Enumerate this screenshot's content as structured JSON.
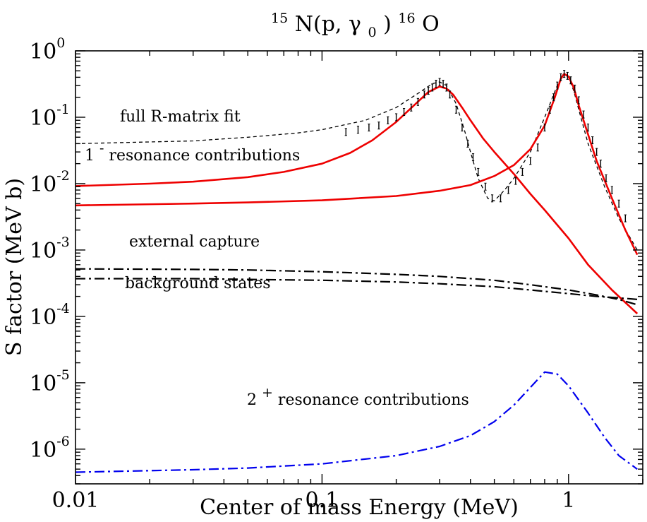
{
  "chart_data": {
    "type": "line",
    "title": {
      "mass_left": "15",
      "nucleus_left": "N(p,",
      "gamma": "γ",
      "gamma_sub": "0",
      "close": ")",
      "mass_right": "16",
      "nucleus_right": "O"
    },
    "xlabel": "Center of mass Energy (MeV)",
    "ylabel": "S factor (MeV b)",
    "x_scale": "log",
    "y_scale": "log",
    "xlim": [
      0.01,
      2.0
    ],
    "ylim": [
      3e-07,
      1.0
    ],
    "grid": false,
    "x_ticks": [
      {
        "value": 0.01,
        "label": "0.01"
      },
      {
        "value": 0.1,
        "label": "0.1"
      },
      {
        "value": 1,
        "label": "1"
      }
    ],
    "y_ticks": [
      {
        "value": 1,
        "base": "10",
        "exp": "0"
      },
      {
        "value": 0.1,
        "base": "10",
        "exp": "-1"
      },
      {
        "value": 0.01,
        "base": "10",
        "exp": "-2"
      },
      {
        "value": 0.001,
        "base": "10",
        "exp": "-3"
      },
      {
        "value": 0.0001,
        "base": "10",
        "exp": "-4"
      },
      {
        "value": 1e-05,
        "base": "10",
        "exp": "-5"
      },
      {
        "value": 1e-06,
        "base": "10",
        "exp": "-6"
      }
    ],
    "annotations": {
      "full_fit": "full R-matrix fit",
      "res1_base": "1",
      "res1_sup": "-",
      "res1_rest": " resonance contributions",
      "ext_capture": "external capture",
      "background": "background states",
      "res2_base": "2",
      "res2_sup": "+",
      "res2_rest": " resonance contributions"
    },
    "series": [
      {
        "id": "full-fit",
        "color": "#000000",
        "style": "dashed",
        "x": [
          0.01,
          0.03,
          0.05,
          0.08,
          0.1,
          0.15,
          0.2,
          0.25,
          0.28,
          0.3,
          0.32,
          0.35,
          0.38,
          0.4,
          0.43,
          0.47,
          0.5,
          0.55,
          0.6,
          0.7,
          0.8,
          0.9,
          0.95,
          1.0,
          1.05,
          1.1,
          1.2,
          1.4,
          1.6,
          1.9
        ],
        "y": [
          0.04,
          0.044,
          0.05,
          0.058,
          0.065,
          0.09,
          0.14,
          0.24,
          0.32,
          0.34,
          0.3,
          0.16,
          0.06,
          0.03,
          0.012,
          0.006,
          0.0055,
          0.008,
          0.012,
          0.03,
          0.1,
          0.3,
          0.44,
          0.4,
          0.25,
          0.13,
          0.04,
          0.009,
          0.003,
          0.001
        ]
      },
      {
        "id": "res1-a",
        "color": "#ee0000",
        "style": "solid",
        "x": [
          0.01,
          0.02,
          0.03,
          0.05,
          0.07,
          0.1,
          0.13,
          0.16,
          0.2,
          0.24,
          0.27,
          0.3,
          0.32,
          0.34,
          0.37,
          0.4,
          0.45,
          0.5,
          0.6,
          0.7,
          0.8,
          1.0,
          1.2,
          1.5,
          1.9
        ],
        "y": [
          0.0092,
          0.01,
          0.0107,
          0.0125,
          0.015,
          0.02,
          0.029,
          0.045,
          0.085,
          0.16,
          0.24,
          0.29,
          0.27,
          0.22,
          0.14,
          0.09,
          0.048,
          0.03,
          0.014,
          0.007,
          0.004,
          0.0015,
          0.0006,
          0.00025,
          0.00011
        ]
      },
      {
        "id": "res1-b",
        "color": "#ee0000",
        "style": "solid",
        "x": [
          0.01,
          0.03,
          0.05,
          0.1,
          0.2,
          0.3,
          0.4,
          0.5,
          0.6,
          0.7,
          0.8,
          0.88,
          0.93,
          0.96,
          1.0,
          1.05,
          1.1,
          1.2,
          1.3,
          1.5,
          1.7,
          1.9
        ],
        "y": [
          0.0047,
          0.005,
          0.0052,
          0.0056,
          0.0065,
          0.0078,
          0.0095,
          0.013,
          0.019,
          0.033,
          0.075,
          0.2,
          0.38,
          0.45,
          0.41,
          0.28,
          0.15,
          0.055,
          0.022,
          0.006,
          0.002,
          0.00085
        ]
      },
      {
        "id": "ext-capture",
        "color": "#000000",
        "style": "dashdot",
        "x": [
          0.01,
          0.03,
          0.05,
          0.1,
          0.2,
          0.3,
          0.5,
          0.7,
          1.0,
          1.3,
          1.6,
          1.9
        ],
        "y": [
          0.00052,
          0.00051,
          0.0005,
          0.00047,
          0.00043,
          0.0004,
          0.00035,
          0.0003,
          0.00025,
          0.00021,
          0.00018,
          0.00015
        ]
      },
      {
        "id": "background",
        "color": "#000000",
        "style": "dashdot",
        "x": [
          0.01,
          0.03,
          0.05,
          0.1,
          0.2,
          0.3,
          0.5,
          0.7,
          1.0,
          1.3,
          1.6,
          1.9
        ],
        "y": [
          0.00037,
          0.00037,
          0.00036,
          0.00035,
          0.00033,
          0.00031,
          0.00028,
          0.00025,
          0.00022,
          0.0002,
          0.00019,
          0.00018
        ]
      },
      {
        "id": "res2",
        "color": "#0000ee",
        "style": "dashdot",
        "x": [
          0.01,
          0.03,
          0.05,
          0.1,
          0.2,
          0.3,
          0.4,
          0.5,
          0.6,
          0.7,
          0.8,
          0.9,
          1.0,
          1.2,
          1.4,
          1.6,
          1.9
        ],
        "y": [
          4.5e-07,
          4.9e-07,
          5.2e-07,
          6e-07,
          8e-07,
          1.1e-06,
          1.6e-06,
          2.6e-06,
          4.6e-06,
          8.5e-06,
          1.45e-05,
          1.35e-05,
          9e-06,
          3.5e-06,
          1.5e-06,
          8e-07,
          5e-07
        ]
      }
    ],
    "data_points": {
      "x": [
        0.125,
        0.14,
        0.155,
        0.17,
        0.185,
        0.2,
        0.215,
        0.23,
        0.245,
        0.26,
        0.27,
        0.28,
        0.29,
        0.3,
        0.31,
        0.32,
        0.33,
        0.35,
        0.37,
        0.39,
        0.41,
        0.43,
        0.46,
        0.49,
        0.53,
        0.57,
        0.61,
        0.65,
        0.7,
        0.75,
        0.8,
        0.84,
        0.87,
        0.9,
        0.93,
        0.96,
        0.99,
        1.02,
        1.06,
        1.1,
        1.15,
        1.2,
        1.25,
        1.3,
        1.35,
        1.42,
        1.5,
        1.6,
        1.7
      ],
      "y": [
        0.06,
        0.065,
        0.07,
        0.075,
        0.09,
        0.1,
        0.12,
        0.14,
        0.17,
        0.22,
        0.25,
        0.28,
        0.32,
        0.34,
        0.32,
        0.28,
        0.22,
        0.13,
        0.07,
        0.04,
        0.025,
        0.015,
        0.009,
        0.006,
        0.006,
        0.008,
        0.011,
        0.015,
        0.022,
        0.035,
        0.07,
        0.13,
        0.2,
        0.3,
        0.4,
        0.45,
        0.42,
        0.36,
        0.27,
        0.18,
        0.11,
        0.07,
        0.045,
        0.03,
        0.02,
        0.012,
        0.008,
        0.005,
        0.003
      ]
    }
  }
}
